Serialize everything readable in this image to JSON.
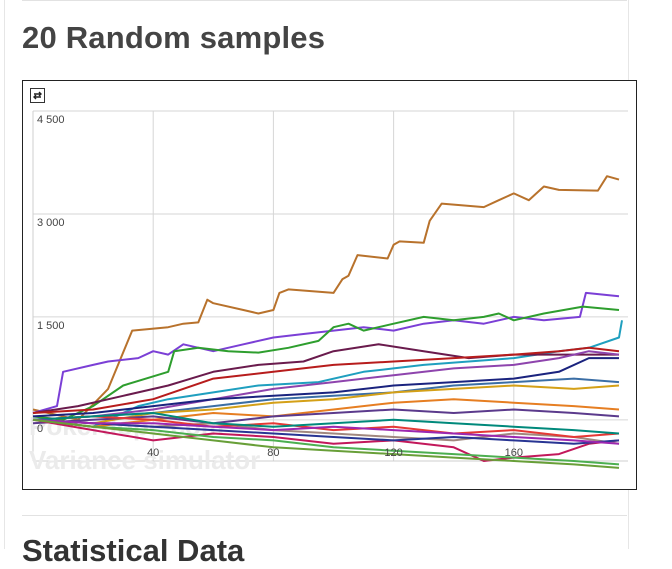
{
  "page": {
    "title": "20 Random samples",
    "next_heading": "Statistical Data"
  },
  "toolbar": {
    "toggle_icon": "swap-arrows-icon"
  },
  "watermark": {
    "line1": "Pokerdope.com",
    "line2": "Variance simulator"
  },
  "chart_data": {
    "type": "line",
    "title": "",
    "xlabel": "",
    "ylabel": "",
    "xlim": [
      0,
      198
    ],
    "ylim": [
      -600,
      4500
    ],
    "grid": true,
    "x_ticks": [
      40,
      80,
      120,
      160
    ],
    "x_tick_labels": [
      "40",
      "80",
      "120",
      "160"
    ],
    "y_ticks": [
      4500,
      3000,
      1500,
      0
    ],
    "y_tick_labels": [
      "4 500",
      "3 000",
      "1 500",
      "0"
    ],
    "series": [
      {
        "color": "#b8722c",
        "points": [
          [
            0,
            150
          ],
          [
            15,
            0
          ],
          [
            25,
            450
          ],
          [
            33,
            1300
          ],
          [
            45,
            1350
          ],
          [
            50,
            1400
          ],
          [
            55,
            1420
          ],
          [
            58,
            1750
          ],
          [
            60,
            1700
          ],
          [
            70,
            1600
          ],
          [
            75,
            1550
          ],
          [
            80,
            1600
          ],
          [
            82,
            1850
          ],
          [
            85,
            1900
          ],
          [
            100,
            1850
          ],
          [
            103,
            2050
          ],
          [
            105,
            2100
          ],
          [
            108,
            2400
          ],
          [
            118,
            2350
          ],
          [
            120,
            2550
          ],
          [
            122,
            2600
          ],
          [
            130,
            2580
          ],
          [
            132,
            2900
          ],
          [
            136,
            3150
          ],
          [
            150,
            3100
          ],
          [
            155,
            3200
          ],
          [
            160,
            3300
          ],
          [
            165,
            3200
          ],
          [
            170,
            3400
          ],
          [
            175,
            3350
          ],
          [
            188,
            3340
          ],
          [
            191,
            3550
          ],
          [
            195,
            3500
          ]
        ]
      },
      {
        "color": "#7b3fd6",
        "points": [
          [
            0,
            100
          ],
          [
            8,
            200
          ],
          [
            10,
            700
          ],
          [
            20,
            800
          ],
          [
            25,
            850
          ],
          [
            35,
            900
          ],
          [
            40,
            1000
          ],
          [
            45,
            950
          ],
          [
            50,
            1100
          ],
          [
            60,
            1000
          ],
          [
            70,
            1100
          ],
          [
            80,
            1200
          ],
          [
            90,
            1250
          ],
          [
            100,
            1300
          ],
          [
            110,
            1350
          ],
          [
            120,
            1300
          ],
          [
            130,
            1400
          ],
          [
            140,
            1450
          ],
          [
            150,
            1400
          ],
          [
            160,
            1500
          ],
          [
            170,
            1450
          ],
          [
            182,
            1500
          ],
          [
            184,
            1850
          ],
          [
            195,
            1800
          ]
        ]
      },
      {
        "color": "#2e9e2e",
        "points": [
          [
            0,
            50
          ],
          [
            10,
            0
          ],
          [
            20,
            200
          ],
          [
            30,
            500
          ],
          [
            45,
            700
          ],
          [
            47,
            1000
          ],
          [
            55,
            1050
          ],
          [
            65,
            1000
          ],
          [
            75,
            980
          ],
          [
            85,
            1050
          ],
          [
            95,
            1150
          ],
          [
            100,
            1350
          ],
          [
            105,
            1400
          ],
          [
            110,
            1300
          ],
          [
            120,
            1400
          ],
          [
            130,
            1500
          ],
          [
            140,
            1450
          ],
          [
            150,
            1500
          ],
          [
            155,
            1550
          ],
          [
            160,
            1450
          ],
          [
            170,
            1550
          ],
          [
            183,
            1650
          ],
          [
            195,
            1600
          ]
        ]
      },
      {
        "color": "#1f9fbf",
        "points": [
          [
            0,
            0
          ],
          [
            20,
            -100
          ],
          [
            35,
            200
          ],
          [
            45,
            300
          ],
          [
            60,
            400
          ],
          [
            75,
            500
          ],
          [
            95,
            550
          ],
          [
            110,
            700
          ],
          [
            120,
            750
          ],
          [
            130,
            800
          ],
          [
            145,
            850
          ],
          [
            160,
            900
          ],
          [
            175,
            1000
          ],
          [
            185,
            1050
          ],
          [
            195,
            1200
          ],
          [
            196,
            1450
          ]
        ]
      },
      {
        "color": "#6a1b4d",
        "points": [
          [
            0,
            100
          ],
          [
            15,
            200
          ],
          [
            30,
            350
          ],
          [
            45,
            500
          ],
          [
            60,
            700
          ],
          [
            75,
            800
          ],
          [
            90,
            850
          ],
          [
            100,
            1000
          ],
          [
            115,
            1100
          ],
          [
            130,
            1000
          ],
          [
            145,
            900
          ],
          [
            160,
            950
          ],
          [
            175,
            950
          ],
          [
            185,
            950
          ],
          [
            195,
            950
          ]
        ]
      },
      {
        "color": "#b71c1c",
        "points": [
          [
            0,
            100
          ],
          [
            20,
            150
          ],
          [
            40,
            300
          ],
          [
            60,
            600
          ],
          [
            80,
            700
          ],
          [
            100,
            800
          ],
          [
            120,
            850
          ],
          [
            140,
            900
          ],
          [
            160,
            950
          ],
          [
            175,
            1000
          ],
          [
            185,
            1050
          ],
          [
            195,
            1000
          ]
        ]
      },
      {
        "color": "#8e44ad",
        "points": [
          [
            0,
            0
          ],
          [
            20,
            50
          ],
          [
            40,
            150
          ],
          [
            60,
            300
          ],
          [
            80,
            450
          ],
          [
            100,
            550
          ],
          [
            120,
            650
          ],
          [
            140,
            750
          ],
          [
            160,
            800
          ],
          [
            175,
            900
          ],
          [
            185,
            1000
          ],
          [
            195,
            950
          ]
        ]
      },
      {
        "color": "#1a237e",
        "points": [
          [
            0,
            50
          ],
          [
            20,
            100
          ],
          [
            40,
            200
          ],
          [
            60,
            300
          ],
          [
            80,
            350
          ],
          [
            100,
            400
          ],
          [
            120,
            500
          ],
          [
            140,
            550
          ],
          [
            160,
            600
          ],
          [
            175,
            700
          ],
          [
            185,
            900
          ],
          [
            195,
            900
          ]
        ]
      },
      {
        "color": "#3b6ea5",
        "points": [
          [
            0,
            0
          ],
          [
            20,
            50
          ],
          [
            40,
            100
          ],
          [
            60,
            200
          ],
          [
            80,
            300
          ],
          [
            100,
            350
          ],
          [
            120,
            400
          ],
          [
            140,
            500
          ],
          [
            160,
            550
          ],
          [
            180,
            600
          ],
          [
            195,
            550
          ]
        ]
      },
      {
        "color": "#d4a017",
        "points": [
          [
            0,
            0
          ],
          [
            20,
            -50
          ],
          [
            40,
            100
          ],
          [
            60,
            150
          ],
          [
            80,
            250
          ],
          [
            100,
            300
          ],
          [
            120,
            400
          ],
          [
            140,
            450
          ],
          [
            160,
            500
          ],
          [
            180,
            450
          ],
          [
            195,
            500
          ]
        ]
      },
      {
        "color": "#e67e22",
        "points": [
          [
            0,
            0
          ],
          [
            20,
            -100
          ],
          [
            40,
            0
          ],
          [
            60,
            100
          ],
          [
            80,
            50
          ],
          [
            100,
            150
          ],
          [
            120,
            250
          ],
          [
            140,
            300
          ],
          [
            160,
            250
          ],
          [
            180,
            200
          ],
          [
            195,
            150
          ]
        ]
      },
      {
        "color": "#5b3a8c",
        "points": [
          [
            0,
            -50
          ],
          [
            20,
            0
          ],
          [
            40,
            50
          ],
          [
            60,
            -50
          ],
          [
            80,
            50
          ],
          [
            100,
            100
          ],
          [
            120,
            150
          ],
          [
            140,
            100
          ],
          [
            160,
            150
          ],
          [
            180,
            100
          ],
          [
            195,
            50
          ]
        ]
      },
      {
        "color": "#c2185b",
        "points": [
          [
            0,
            0
          ],
          [
            20,
            -150
          ],
          [
            40,
            -300
          ],
          [
            60,
            -200
          ],
          [
            80,
            -250
          ],
          [
            100,
            -350
          ],
          [
            120,
            -300
          ],
          [
            140,
            -400
          ],
          [
            150,
            -600
          ],
          [
            160,
            -550
          ],
          [
            175,
            -500
          ],
          [
            185,
            -350
          ],
          [
            195,
            -300
          ]
        ]
      },
      {
        "color": "#4caf50",
        "points": [
          [
            0,
            0
          ],
          [
            20,
            -100
          ],
          [
            40,
            -150
          ],
          [
            60,
            -250
          ],
          [
            80,
            -300
          ],
          [
            100,
            -400
          ],
          [
            120,
            -450
          ],
          [
            140,
            -500
          ],
          [
            160,
            -550
          ],
          [
            180,
            -600
          ],
          [
            195,
            -650
          ]
        ]
      },
      {
        "color": "#a1887f",
        "points": [
          [
            0,
            0
          ],
          [
            20,
            -50
          ],
          [
            40,
            -100
          ],
          [
            60,
            -50
          ],
          [
            80,
            -150
          ],
          [
            100,
            -200
          ],
          [
            120,
            -250
          ],
          [
            140,
            -300
          ],
          [
            160,
            -200
          ],
          [
            180,
            -250
          ],
          [
            195,
            -350
          ]
        ]
      },
      {
        "color": "#e53935",
        "points": [
          [
            0,
            0
          ],
          [
            20,
            50
          ],
          [
            40,
            0
          ],
          [
            60,
            -100
          ],
          [
            80,
            -50
          ],
          [
            100,
            -150
          ],
          [
            120,
            -100
          ],
          [
            140,
            -200
          ],
          [
            160,
            -150
          ],
          [
            180,
            -250
          ],
          [
            195,
            -200
          ]
        ]
      },
      {
        "color": "#283593",
        "points": [
          [
            0,
            0
          ],
          [
            20,
            -50
          ],
          [
            40,
            -100
          ],
          [
            60,
            -150
          ],
          [
            80,
            -200
          ],
          [
            100,
            -250
          ],
          [
            120,
            -300
          ],
          [
            140,
            -250
          ],
          [
            160,
            -300
          ],
          [
            180,
            -350
          ],
          [
            195,
            -300
          ]
        ]
      },
      {
        "color": "#00897b",
        "points": [
          [
            0,
            0
          ],
          [
            20,
            50
          ],
          [
            40,
            100
          ],
          [
            60,
            -50
          ],
          [
            80,
            -100
          ],
          [
            100,
            -50
          ],
          [
            120,
            0
          ],
          [
            140,
            -50
          ],
          [
            160,
            -100
          ],
          [
            180,
            -150
          ],
          [
            195,
            -200
          ]
        ]
      },
      {
        "color": "#9c27b0",
        "points": [
          [
            0,
            0
          ],
          [
            20,
            -50
          ],
          [
            40,
            -50
          ],
          [
            60,
            -100
          ],
          [
            80,
            -150
          ],
          [
            100,
            -100
          ],
          [
            120,
            -150
          ],
          [
            140,
            -200
          ],
          [
            160,
            -250
          ],
          [
            180,
            -300
          ],
          [
            195,
            -350
          ]
        ]
      },
      {
        "color": "#689f38",
        "points": [
          [
            0,
            0
          ],
          [
            20,
            -100
          ],
          [
            40,
            -200
          ],
          [
            60,
            -300
          ],
          [
            80,
            -400
          ],
          [
            100,
            -450
          ],
          [
            120,
            -500
          ],
          [
            140,
            -550
          ],
          [
            160,
            -600
          ],
          [
            180,
            -650
          ],
          [
            195,
            -700
          ]
        ]
      }
    ]
  }
}
